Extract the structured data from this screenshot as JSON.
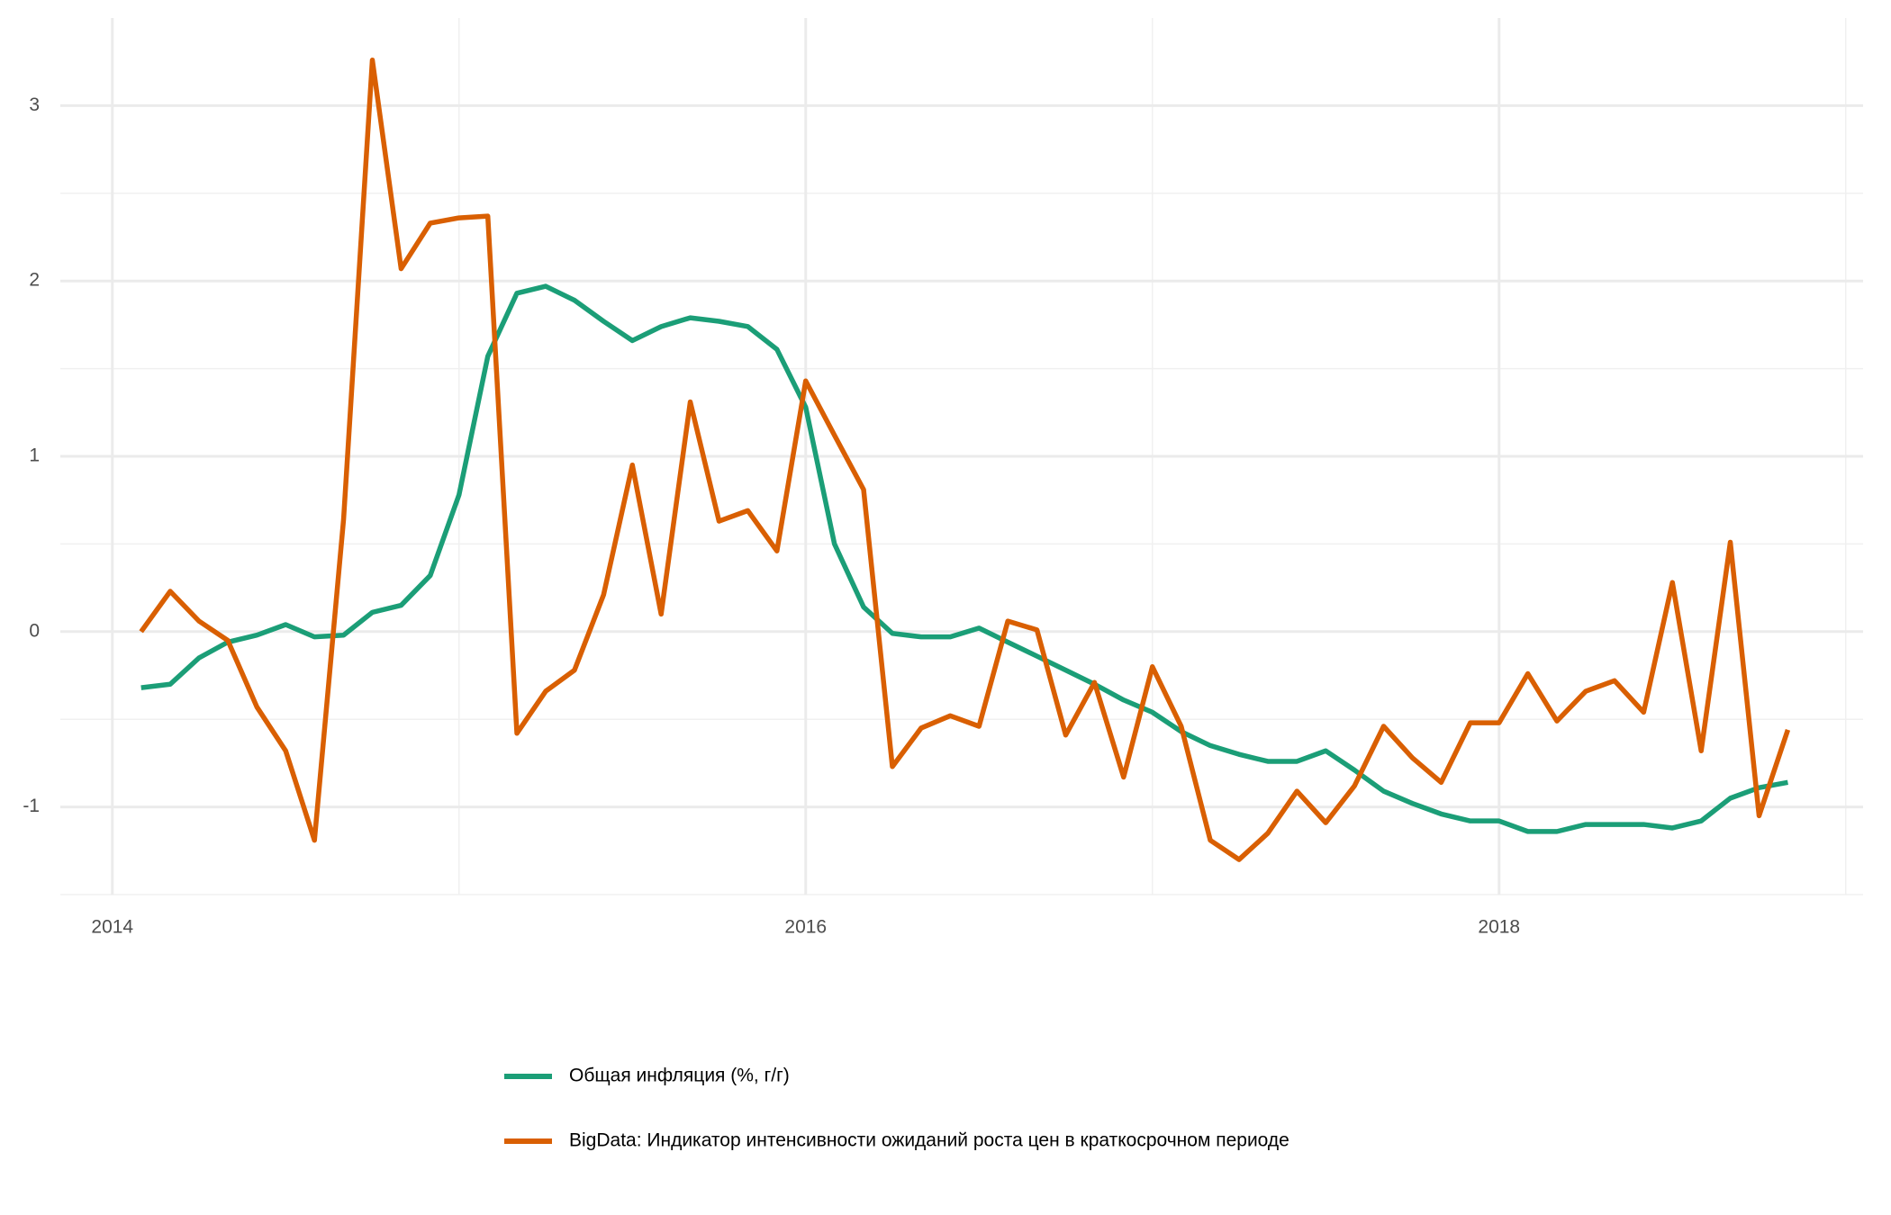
{
  "chart_data": {
    "type": "line",
    "x": [
      2014.083,
      2014.167,
      2014.25,
      2014.333,
      2014.417,
      2014.5,
      2014.583,
      2014.667,
      2014.75,
      2014.833,
      2014.917,
      2015,
      2015.083,
      2015.167,
      2015.25,
      2015.333,
      2015.417,
      2015.5,
      2015.583,
      2015.667,
      2015.75,
      2015.833,
      2015.917,
      2016,
      2016.083,
      2016.167,
      2016.25,
      2016.333,
      2016.417,
      2016.5,
      2016.583,
      2016.667,
      2016.75,
      2016.833,
      2016.917,
      2017,
      2017.083,
      2017.167,
      2017.25,
      2017.333,
      2017.417,
      2017.5,
      2017.583,
      2017.667,
      2017.75,
      2017.833,
      2017.917,
      2018,
      2018.083,
      2018.167,
      2018.25,
      2018.333,
      2018.417,
      2018.5,
      2018.583,
      2018.667,
      2018.75,
      2018.833
    ],
    "series": [
      {
        "name": "Общая инфляция (%, г/г)",
        "color": "#1b9e77",
        "values": [
          -0.32,
          -0.3,
          -0.15,
          -0.06,
          -0.02,
          0.04,
          -0.03,
          -0.02,
          0.11,
          0.15,
          0.32,
          0.78,
          1.57,
          1.93,
          1.97,
          1.89,
          1.77,
          1.66,
          1.74,
          1.79,
          1.77,
          1.74,
          1.61,
          1.28,
          0.5,
          0.14,
          -0.01,
          -0.03,
          -0.03,
          0.02,
          -0.06,
          -0.14,
          -0.22,
          -0.3,
          -0.39,
          -0.46,
          -0.57,
          -0.65,
          -0.7,
          -0.74,
          -0.74,
          -0.68,
          -0.79,
          -0.91,
          -0.98,
          -1.04,
          -1.08,
          -1.08,
          -1.14,
          -1.14,
          -1.1,
          -1.1,
          -1.1,
          -1.12,
          -1.08,
          -0.95,
          -0.89,
          -0.86
        ]
      },
      {
        "name": "BigData: Индикатор интенсивности ожиданий роста цен в краткосрочном периоде",
        "color": "#d95f02",
        "values": [
          0,
          0.23,
          0.06,
          -0.05,
          -0.43,
          -0.68,
          -1.19,
          0.64,
          3.26,
          2.07,
          2.33,
          2.36,
          2.37,
          -0.58,
          -0.34,
          -0.22,
          0.21,
          0.95,
          0.1,
          1.31,
          0.63,
          0.69,
          0.46,
          1.43,
          1.12,
          0.81,
          -0.77,
          -0.55,
          -0.48,
          -0.54,
          0.06,
          0.01,
          -0.59,
          -0.29,
          -0.83,
          -0.2,
          -0.54,
          -1.19,
          -1.3,
          -1.15,
          -0.91,
          -1.09,
          -0.88,
          -0.54,
          -0.72,
          -0.86,
          -0.52,
          -0.52,
          -0.24,
          -0.51,
          -0.34,
          -0.28,
          -0.46,
          0.28,
          -0.68,
          0.51,
          -1.05,
          -0.56
        ]
      }
    ],
    "xlim": [
      2013.85,
      2019.05
    ],
    "xticks": [
      2014,
      2016,
      2018
    ],
    "minor_xticks": [
      2015,
      2017,
      2019
    ],
    "ylim": [
      -1.5,
      3.5
    ],
    "yticks": [
      -1,
      0,
      1,
      2,
      3
    ],
    "minor_yticks": [
      -1.5,
      -0.5,
      0.5,
      1.5,
      2.5
    ],
    "grid": true,
    "legend": "bottom"
  }
}
